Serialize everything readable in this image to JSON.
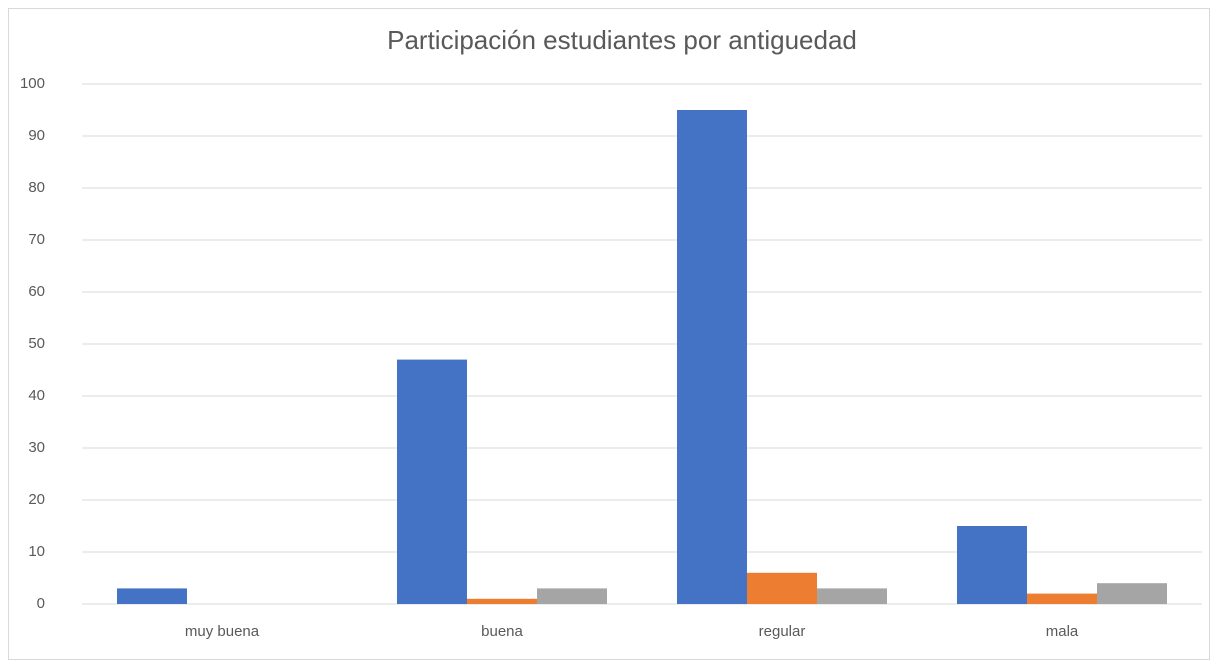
{
  "chart_data": {
    "type": "bar",
    "title": "Participación estudiantes por antiguedad",
    "categories": [
      "muy buena",
      "buena",
      "regular",
      "mala"
    ],
    "series": [
      {
        "color": "#4472c4",
        "values": [
          3,
          47,
          95,
          15
        ]
      },
      {
        "color": "#ed7d31",
        "values": [
          0,
          1,
          6,
          2
        ]
      },
      {
        "color": "#a5a5a5",
        "values": [
          0,
          3,
          3,
          4
        ]
      }
    ],
    "ylim": [
      0,
      100
    ],
    "yticks": [
      0,
      10,
      20,
      30,
      40,
      50,
      60,
      70,
      80,
      90,
      100
    ],
    "grid": true
  }
}
